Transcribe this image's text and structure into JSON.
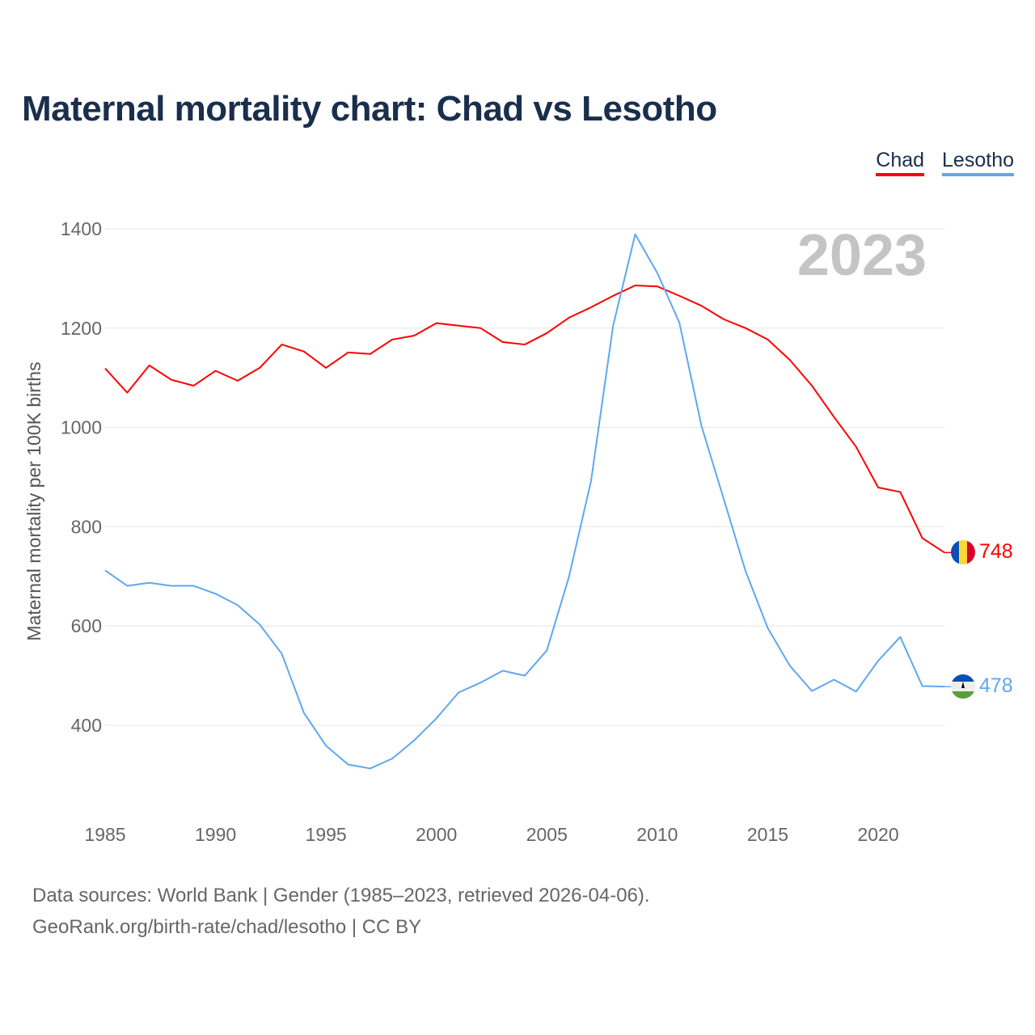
{
  "title": "Maternal mortality chart: Chad vs Lesotho",
  "source_line1": "Data sources: World Bank | Gender (1985–2023, retrieved 2026-04-06).",
  "source_line2": "GeoRank.org/birth-rate/chad/lesotho | CC BY",
  "chart_data": {
    "type": "line",
    "title": "Maternal mortality chart: Chad vs Lesotho",
    "xlabel": "",
    "ylabel": "Maternal mortality per 100K births",
    "year_label": "2023",
    "xlim": [
      1985,
      2023
    ],
    "ylim": [
      230,
      1420
    ],
    "x_ticks": [
      1985,
      1990,
      1995,
      2000,
      2005,
      2010,
      2015,
      2020
    ],
    "y_ticks": [
      400,
      600,
      800,
      1000,
      1200,
      1400
    ],
    "grid": true,
    "legend_position": "top-right",
    "x": [
      1985,
      1986,
      1987,
      1988,
      1989,
      1990,
      1991,
      1992,
      1993,
      1994,
      1995,
      1996,
      1997,
      1998,
      1999,
      2000,
      2001,
      2002,
      2003,
      2004,
      2005,
      2006,
      2007,
      2008,
      2009,
      2010,
      2011,
      2012,
      2013,
      2014,
      2015,
      2016,
      2017,
      2018,
      2019,
      2020,
      2021,
      2022,
      2023
    ],
    "series": [
      {
        "name": "Chad",
        "color": "#ff0000",
        "end_label": "748",
        "values": [
          1119,
          1070,
          1125,
          1096,
          1084,
          1114,
          1094,
          1120,
          1167,
          1153,
          1120,
          1151,
          1148,
          1177,
          1185,
          1210,
          1205,
          1200,
          1172,
          1167,
          1190,
          1221,
          1242,
          1265,
          1286,
          1284,
          1265,
          1245,
          1218,
          1200,
          1177,
          1136,
          1084,
          1021,
          961,
          879,
          870,
          777,
          748
        ]
      },
      {
        "name": "Lesotho",
        "color": "#5ea8f0",
        "end_label": "478",
        "values": [
          712,
          681,
          687,
          681,
          681,
          665,
          642,
          603,
          544,
          425,
          359,
          321,
          313,
          333,
          370,
          414,
          466,
          486,
          510,
          500,
          551,
          699,
          892,
          1205,
          1389,
          1311,
          1211,
          1003,
          857,
          710,
          596,
          520,
          469,
          492,
          468,
          530,
          578,
          479,
          478
        ]
      }
    ]
  }
}
